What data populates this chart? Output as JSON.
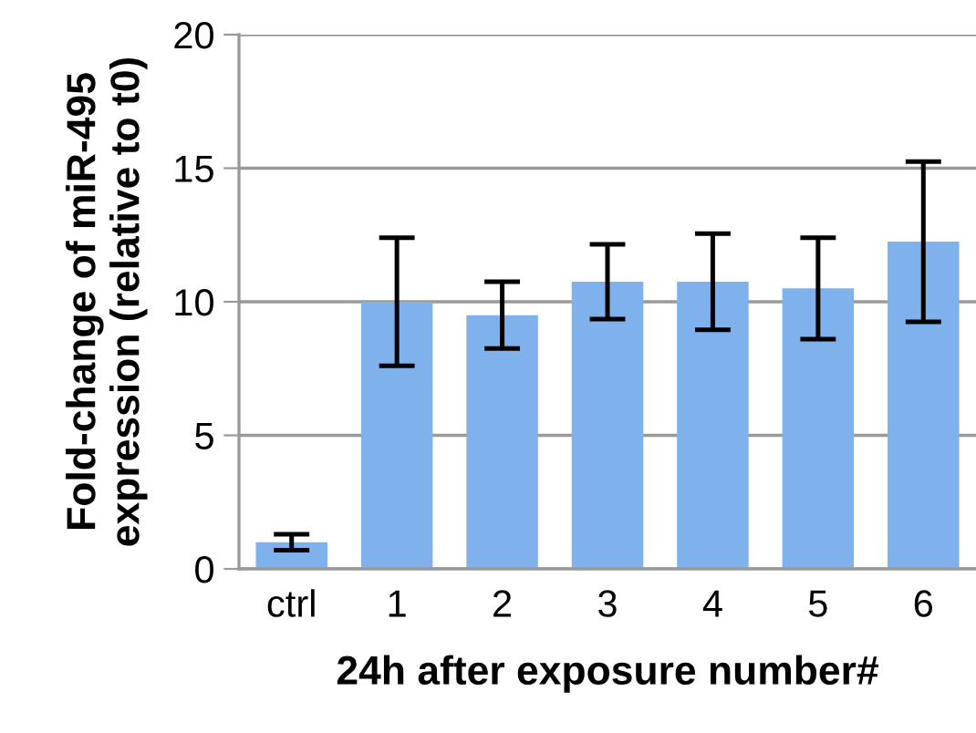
{
  "chart_data": {
    "type": "bar",
    "xlabel": "24h after exposure number#",
    "ylabel": "Fold-change of miR-495\nexpression (relative to t0)",
    "categories": [
      "ctrl",
      "1",
      "2",
      "3",
      "4",
      "5",
      "6"
    ],
    "values": [
      1.0,
      10.0,
      9.5,
      10.75,
      10.75,
      10.5,
      12.25
    ],
    "errors": [
      0.3,
      2.4,
      1.25,
      1.4,
      1.8,
      1.9,
      3.0
    ],
    "color": "#7fb2ec",
    "ylim": [
      0,
      20
    ],
    "yticks": [
      0,
      5,
      10,
      15,
      20
    ],
    "grid": "y"
  }
}
